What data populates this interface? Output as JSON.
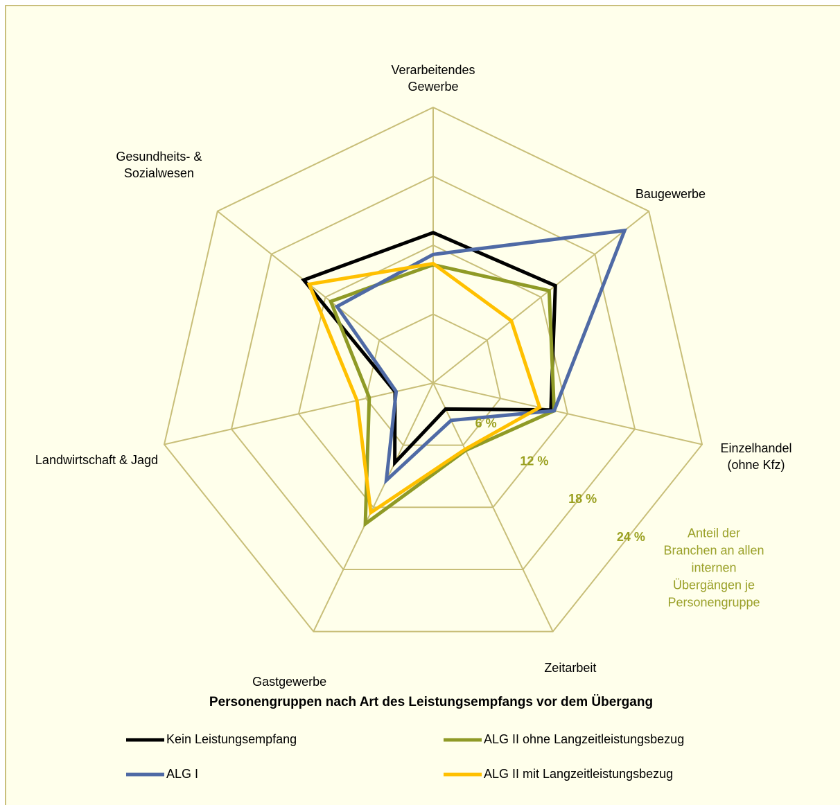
{
  "chart_data": {
    "type": "radar",
    "categories": [
      "Verarbeitendes Gewerbe",
      "Baugewerbe",
      "Einzelhandel (ohne Kfz)",
      "Zeitarbeit",
      "Gastgewerbe",
      "Landwirtschaft & Jagd",
      "Gesundheits- & Sozialwesen"
    ],
    "series": [
      {
        "name": "Kein Leistungsempfang",
        "color": "#000000",
        "values": [
          13.1,
          13.6,
          10.5,
          2.5,
          7.7,
          3.4,
          14.4
        ]
      },
      {
        "name": "ALG II ohne Langzeitleistungsbezug",
        "color": "#8f9a26",
        "values": [
          10.3,
          12.9,
          10.8,
          6.5,
          13.6,
          5.7,
          11.4
        ]
      },
      {
        "name": "ALG I",
        "color": "#4f6aa5",
        "values": [
          11.2,
          21.3,
          10.8,
          3.6,
          9.4,
          3.3,
          10.7
        ]
      },
      {
        "name": "ALG II mit Langzeitleistungsbezug",
        "color": "#ffc000",
        "values": [
          10.4,
          8.7,
          9.5,
          6.4,
          12.5,
          6.8,
          13.8
        ]
      }
    ],
    "ylim": [
      0,
      24
    ],
    "yticks": [
      {
        "value": 6,
        "label": "6 %"
      },
      {
        "value": 12,
        "label": "12 %"
      },
      {
        "value": 18,
        "label": "18 %"
      },
      {
        "value": 24,
        "label": "24 %"
      }
    ],
    "grid": true,
    "annotation": "Anteil der Branchen an allen internen Übergängen je Personengruppe",
    "legend_title": "Personengruppen nach Art des Leistungsempfangs vor dem Übergang",
    "legend": "bottom"
  }
}
